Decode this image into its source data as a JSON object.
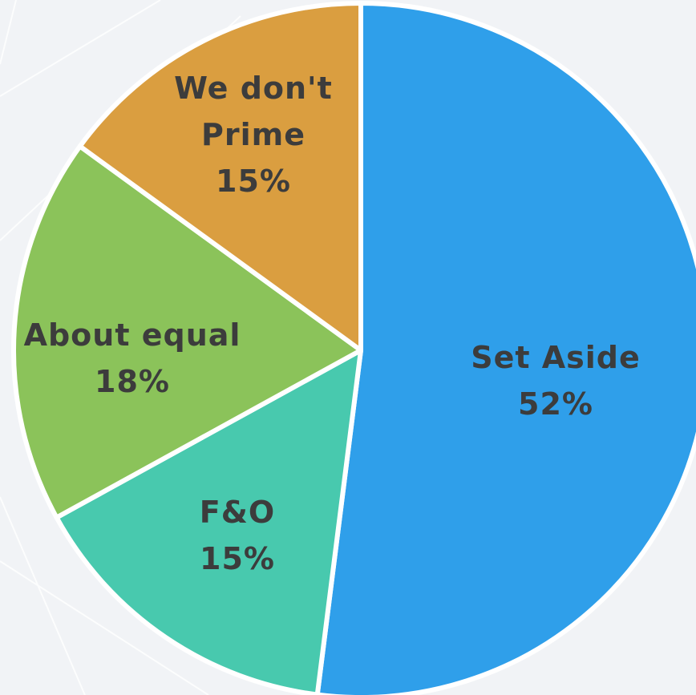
{
  "chart_data": {
    "type": "pie",
    "categories": [
      "Set Aside",
      "F&O",
      "About equal",
      "We don't Prime"
    ],
    "values": [
      52,
      15,
      18,
      15
    ],
    "value_labels": [
      "52%",
      "15%",
      "18%",
      "15%"
    ],
    "colors": [
      "#2f9fea",
      "#48c9ae",
      "#8bc35a",
      "#da9e40"
    ]
  }
}
